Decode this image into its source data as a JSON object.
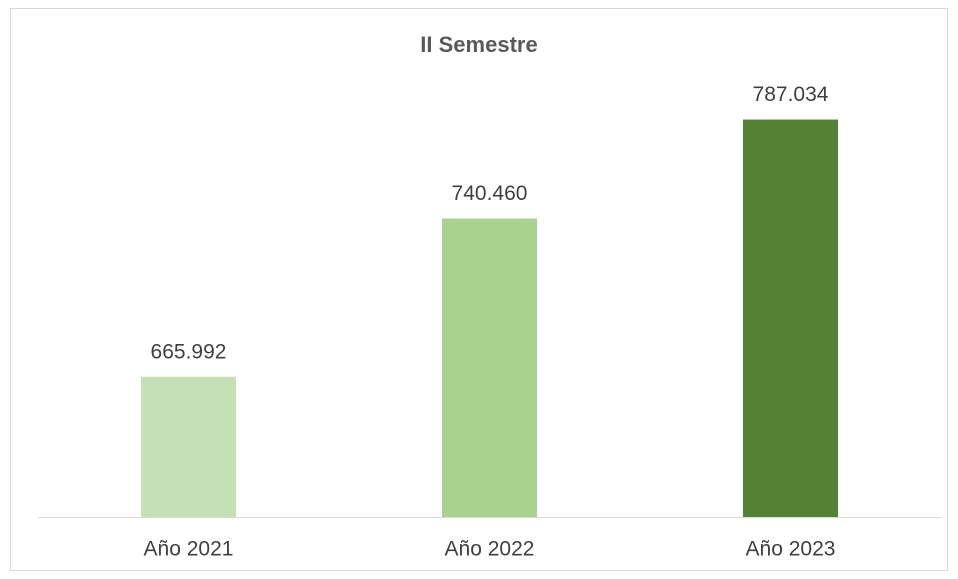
{
  "chart_data": {
    "type": "bar",
    "title": "II Semestre",
    "categories": [
      "Año 2021",
      "Año 2022",
      "Año 2023"
    ],
    "values": [
      665992,
      740460,
      787034
    ],
    "value_labels": [
      "665.992",
      "740.460",
      "787.034"
    ],
    "colors": [
      "#c5e0b4",
      "#a9d18e",
      "#548235"
    ],
    "ylim": [
      600000,
      800000
    ]
  }
}
